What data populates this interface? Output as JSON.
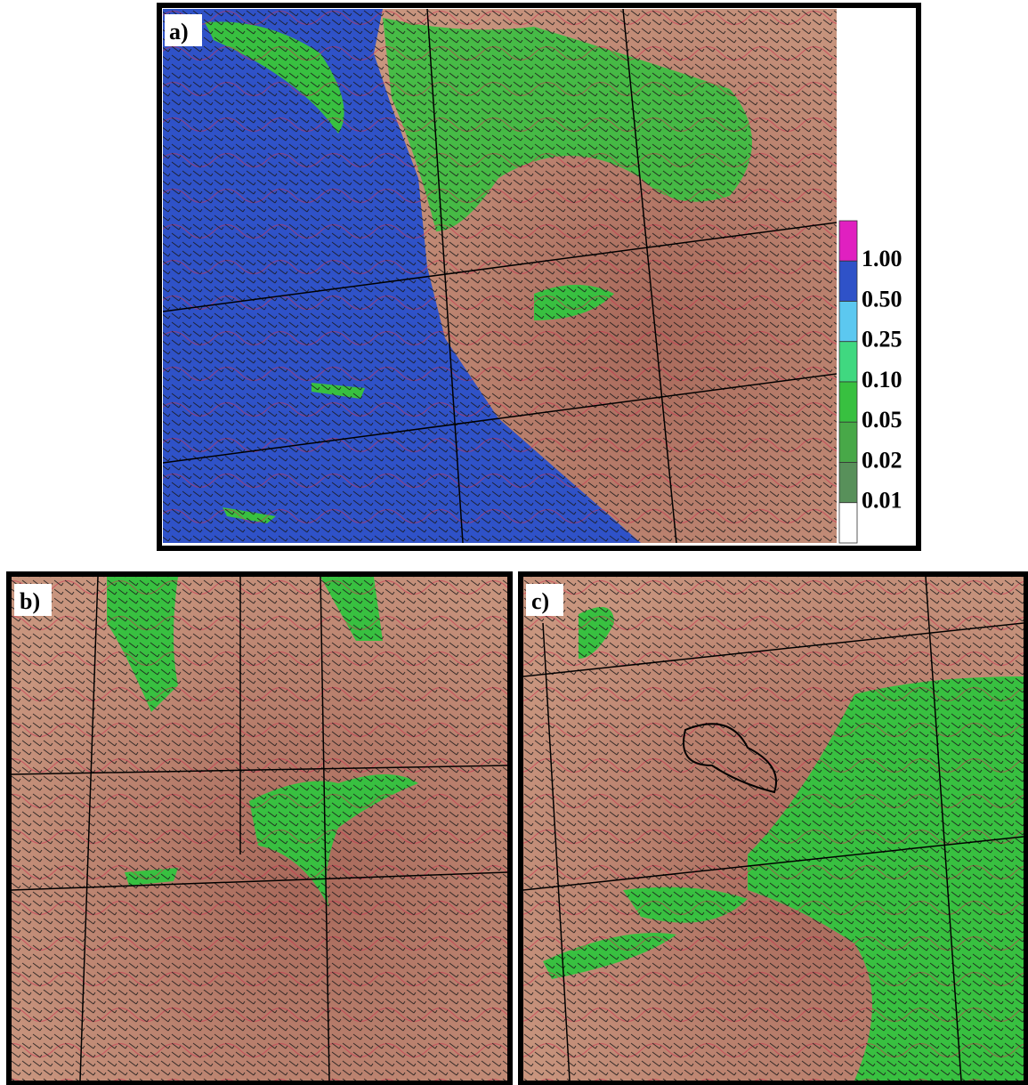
{
  "panels": [
    {
      "label": "a)"
    },
    {
      "label": "b)"
    },
    {
      "label": "c)"
    }
  ],
  "legend": {
    "labels": [
      "1.00",
      "0.50",
      "0.25",
      "0.10",
      "0.05",
      "0.02",
      "0.01"
    ],
    "colors": [
      "#e020c0",
      "#2f52c8",
      "#5cc8f0",
      "#40d880",
      "#38c040",
      "#48a848",
      "#58905a",
      "#ffffff"
    ]
  }
}
